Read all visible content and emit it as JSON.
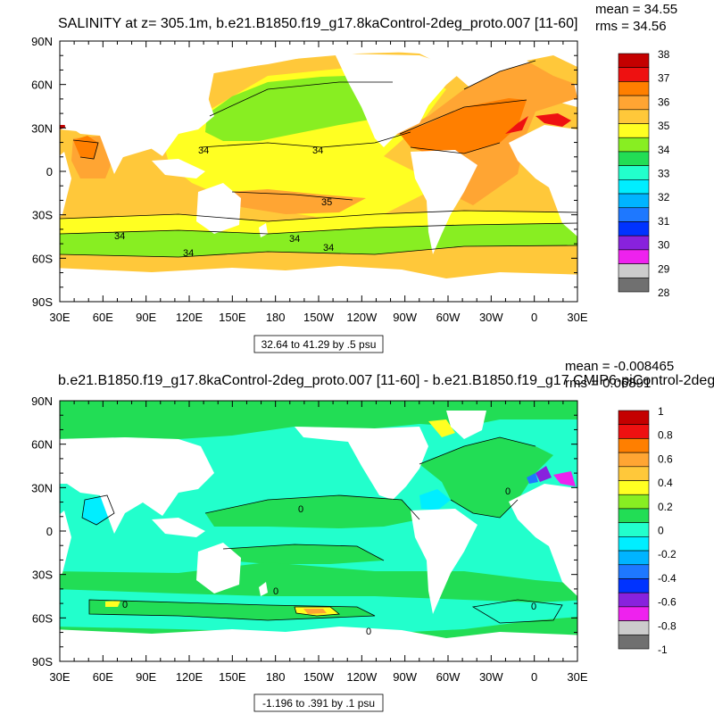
{
  "chart_data": [
    {
      "type": "heatmap",
      "title": "SALINITY at z= 305.1m, b.e21.B1850.f19_g17.8kaControl-2deg_proto.007 [11-60]",
      "stats": [
        "mean = 34.55",
        "rms = 34.56"
      ],
      "x_ticks": [
        "30E",
        "60E",
        "90E",
        "120E",
        "150E",
        "180",
        "150W",
        "120W",
        "90W",
        "60W",
        "30W",
        "0",
        "30E"
      ],
      "y_ticks": [
        "90N",
        "60N",
        "30N",
        "0",
        "30S",
        "60S",
        "90S"
      ],
      "x_range_deg": [
        30,
        390
      ],
      "y_range_deg": [
        -90,
        90
      ],
      "range_label": "32.64 to 41.29 by .5 psu",
      "colorbar": {
        "levels": [
          "38",
          "37",
          "36",
          "35",
          "34",
          "33",
          "32",
          "31",
          "30",
          "29",
          "28"
        ],
        "colors": [
          "#c40000",
          "#ee1111",
          "#ff7f00",
          "#ffa533",
          "#ffc83a",
          "#ffff22",
          "#88ee22",
          "#22dd55",
          "#22ffcc",
          "#00eeff",
          "#00b4ff",
          "#1e78ff",
          "#0033ff",
          "#8822dd",
          "#ee22ee",
          "#cccccc",
          "#707070"
        ]
      },
      "contour_labels": [
        "34",
        "34",
        "35",
        "34",
        "34",
        "34",
        "34"
      ]
    },
    {
      "type": "heatmap",
      "title": "b.e21.B1850.f19_g17.8kaControl-2deg_proto.007 [11-60] - b.e21.B1850.f19_g17.CMIP6-piControl-2deg",
      "stats": [
        "mean = -0.008465",
        "rms = 0.06891"
      ],
      "x_ticks": [
        "30E",
        "60E",
        "90E",
        "120E",
        "150E",
        "180",
        "150W",
        "120W",
        "90W",
        "60W",
        "30W",
        "0",
        "30E"
      ],
      "y_ticks": [
        "90N",
        "60N",
        "30N",
        "0",
        "30S",
        "60S",
        "90S"
      ],
      "x_range_deg": [
        30,
        390
      ],
      "y_range_deg": [
        -90,
        90
      ],
      "range_label": "-1.196 to .391 by .1 psu",
      "colorbar": {
        "levels": [
          "1",
          "0.8",
          "0.6",
          "0.4",
          "0.2",
          "0",
          "-0.2",
          "-0.4",
          "-0.6",
          "-0.8",
          "-1"
        ],
        "colors": [
          "#c40000",
          "#ee1111",
          "#ff7f00",
          "#ffa533",
          "#ffc83a",
          "#ffff22",
          "#88ee22",
          "#22dd55",
          "#22ffcc",
          "#00eeff",
          "#00b4ff",
          "#1e78ff",
          "#0033ff",
          "#8822dd",
          "#ee22ee",
          "#cccccc",
          "#707070"
        ]
      },
      "contour_labels": [
        "0",
        "0",
        "0",
        "0",
        "0",
        "0"
      ]
    }
  ]
}
